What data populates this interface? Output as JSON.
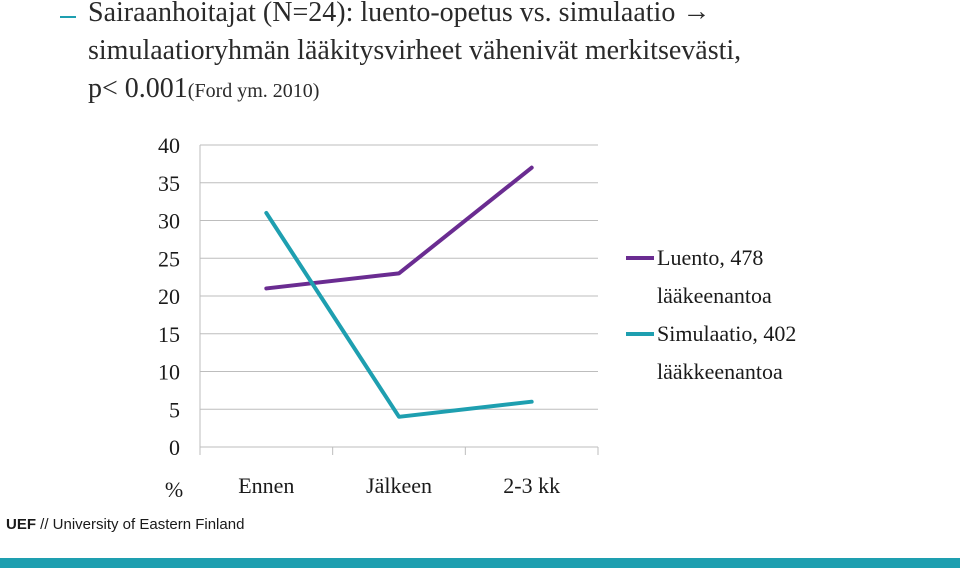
{
  "slide": {
    "title_main": "Sairaanhoitajat (N=24): luento-opetus vs. simulaatio",
    "title_arrow": "→",
    "title_line2": "simulaatioryhmän lääkitysvirheet vähenivät merkitsevästi,",
    "title_line3": "p< 0.001",
    "citation": "(Ford ym. 2010)",
    "footer_bold": "UEF",
    "footer_rest": " // University of Eastern Finland",
    "accent_color": "#1e9fb0"
  },
  "chart_data": {
    "type": "line",
    "categories": [
      "Ennen",
      "Jälkeen",
      "2-3 kk"
    ],
    "ylabel": "%",
    "ylim": [
      0,
      40
    ],
    "yticks": [
      0,
      5,
      10,
      15,
      20,
      25,
      30,
      35,
      40
    ],
    "grid": true,
    "legend_position": "right",
    "series": [
      {
        "name_line1": "Luento, 478",
        "name_line2": "lääkeenantoa",
        "color": "#6a2c91",
        "values": [
          21,
          23,
          37
        ]
      },
      {
        "name_line1": "Simulaatio, 402",
        "name_line2": "lääkkeenantoa",
        "color": "#1e9fb0",
        "values": [
          31,
          4,
          6
        ]
      }
    ]
  }
}
